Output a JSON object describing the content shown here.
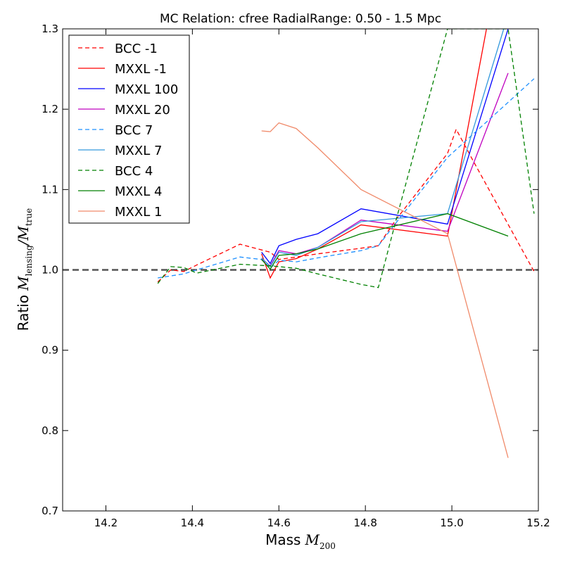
{
  "chart_data": {
    "type": "line",
    "title": "MC Relation: cfree RadialRange: 0.50 - 1.5 Mpc",
    "xlabel": {
      "prefix": "Mass",
      "math_symbol": "M",
      "math_sub": "200"
    },
    "ylabel": {
      "prefix": "Ratio",
      "num_symbol": "M",
      "num_sub": "lensing",
      "den_symbol": "M",
      "den_sub": "true"
    },
    "xlim": [
      14.1,
      15.2
    ],
    "ylim": [
      0.7,
      1.3
    ],
    "xticks": [
      "14.2",
      "14.4",
      "14.6",
      "14.8",
      "15.0",
      "15.2"
    ],
    "yticks": [
      "0.7",
      "0.8",
      "0.9",
      "1.0",
      "1.1",
      "1.2",
      "1.3"
    ],
    "reference_line": {
      "y": 1.0,
      "color": "#555555",
      "style": "dashed"
    },
    "legend_position": "top-left",
    "series": [
      {
        "name": "BCC -1",
        "color": "#ff0000",
        "style": "dashed",
        "x": [
          14.32,
          14.35,
          14.38,
          14.41,
          14.51,
          14.58,
          14.6,
          14.64,
          14.69,
          14.79,
          14.83,
          14.87,
          14.99,
          15.01,
          15.05,
          15.19
        ],
        "y": [
          0.985,
          1.0,
          0.998,
          1.006,
          1.032,
          1.022,
          1.013,
          1.016,
          1.02,
          1.027,
          1.03,
          1.062,
          1.145,
          1.175,
          1.135,
          0.998
        ]
      },
      {
        "name": "MXXL -1",
        "color": "#ff0000",
        "style": "solid",
        "x": [
          14.56,
          14.58,
          14.6,
          14.64,
          14.69,
          14.79,
          14.99,
          15.08
        ],
        "y": [
          1.02,
          0.99,
          1.01,
          1.014,
          1.026,
          1.056,
          1.042,
          1.3
        ]
      },
      {
        "name": "MXXL 100",
        "color": "#0000ff",
        "style": "solid",
        "x": [
          14.56,
          14.58,
          14.6,
          14.64,
          14.69,
          14.79,
          14.99,
          15.13
        ],
        "y": [
          1.022,
          1.008,
          1.03,
          1.038,
          1.045,
          1.076,
          1.057,
          1.3
        ]
      },
      {
        "name": "MXXL 20",
        "color": "#bf00bf",
        "style": "solid",
        "x": [
          14.56,
          14.58,
          14.6,
          14.64,
          14.69,
          14.79,
          14.99,
          15.13
        ],
        "y": [
          1.014,
          1.005,
          1.024,
          1.02,
          1.028,
          1.062,
          1.048,
          1.245
        ]
      },
      {
        "name": "BCC 7",
        "color": "#1e90ff",
        "style": "dashed",
        "x": [
          14.32,
          14.38,
          14.41,
          14.51,
          14.56,
          14.58,
          14.6,
          14.64,
          14.69,
          14.79,
          14.83,
          14.87,
          14.99,
          15.19
        ],
        "y": [
          0.99,
          0.995,
          1.0,
          1.016,
          1.013,
          1.002,
          1.012,
          1.01,
          1.015,
          1.024,
          1.03,
          1.058,
          1.14,
          1.238
        ]
      },
      {
        "name": "MXXL 7",
        "color": "#3399dd",
        "style": "solid",
        "x": [
          14.56,
          14.58,
          14.6,
          14.64,
          14.69,
          14.79,
          14.99,
          15.12
        ],
        "y": [
          1.015,
          1.004,
          1.022,
          1.018,
          1.028,
          1.06,
          1.07,
          1.3
        ]
      },
      {
        "name": "BCC 4",
        "color": "#008000",
        "style": "dashed",
        "x": [
          14.32,
          14.35,
          14.38,
          14.41,
          14.51,
          14.58,
          14.6,
          14.64,
          14.69,
          14.79,
          14.83,
          14.87,
          14.99,
          15.13,
          15.19
        ],
        "y": [
          0.983,
          1.004,
          1.003,
          0.996,
          1.007,
          1.005,
          1.004,
          1.002,
          0.995,
          0.982,
          0.978,
          1.06,
          1.3,
          1.3,
          1.07
        ]
      },
      {
        "name": "MXXL 4",
        "color": "#008000",
        "style": "solid",
        "x": [
          14.56,
          14.58,
          14.6,
          14.64,
          14.69,
          14.79,
          14.99,
          15.13
        ],
        "y": [
          1.013,
          1.001,
          1.018,
          1.02,
          1.026,
          1.045,
          1.07,
          1.042
        ]
      },
      {
        "name": "MXXL 1",
        "color": "#f08a6a",
        "style": "solid",
        "x": [
          14.56,
          14.58,
          14.6,
          14.64,
          14.69,
          14.79,
          14.99,
          15.13
        ],
        "y": [
          1.173,
          1.172,
          1.183,
          1.176,
          1.152,
          1.1,
          1.045,
          0.766
        ]
      }
    ]
  }
}
